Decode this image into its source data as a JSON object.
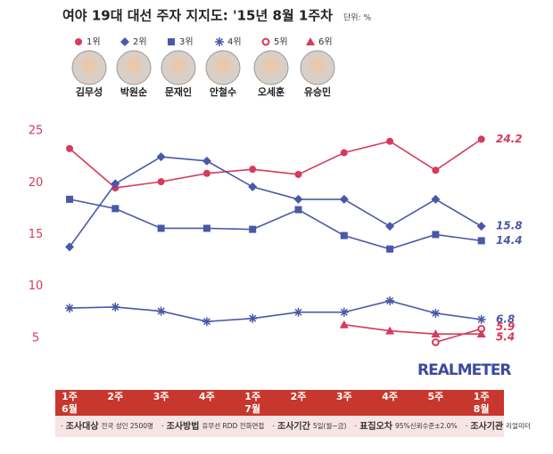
{
  "chart_data": {
    "type": "line",
    "title": "여야 19대 대선 주자 지지도: '15년 8월 1주차",
    "unit": "단위: %",
    "people": [
      "김무성",
      "박원순",
      "문재인",
      "안철수",
      "오세훈",
      "유승민"
    ],
    "categories": [
      [
        "1주",
        "6월"
      ],
      "2주",
      "3주",
      "4주",
      [
        "1주",
        "7월"
      ],
      "2주",
      "3주",
      "4주",
      "5주",
      [
        "1주",
        "8월"
      ]
    ],
    "ylim": [
      0,
      27.5
    ],
    "yticks": [
      5,
      10,
      15,
      20,
      25
    ],
    "series": [
      {
        "name": "1위",
        "color": "#d63a5c",
        "marker": "circle",
        "values": [
          23.3,
          19.5,
          20.1,
          20.9,
          21.3,
          20.8,
          22.9,
          24.0,
          21.2,
          24.2
        ]
      },
      {
        "name": "2위",
        "color": "#4a58a8",
        "marker": "diamond",
        "values": [
          13.8,
          19.9,
          22.5,
          22.1,
          19.6,
          18.4,
          18.4,
          15.8,
          18.4,
          15.8
        ]
      },
      {
        "name": "3위",
        "color": "#4a58a8",
        "marker": "square",
        "values": [
          18.4,
          17.5,
          15.6,
          15.6,
          15.5,
          17.4,
          14.9,
          13.6,
          15.0,
          14.4
        ]
      },
      {
        "name": "4위",
        "color": "#4a58a8",
        "marker": "asterisk",
        "values": [
          7.9,
          8.0,
          7.6,
          6.6,
          6.9,
          7.5,
          7.5,
          8.6,
          7.4,
          6.8
        ]
      },
      {
        "name": "5위",
        "color": "#d63a5c",
        "marker": "circle-open",
        "values": [
          null,
          null,
          null,
          null,
          null,
          null,
          null,
          null,
          4.6,
          5.9
        ]
      },
      {
        "name": "6위",
        "color": "#d63a5c",
        "marker": "triangle",
        "values": [
          null,
          null,
          null,
          null,
          null,
          null,
          6.3,
          5.7,
          5.4,
          5.4
        ]
      }
    ],
    "logo": "REALMETER",
    "footer": [
      {
        "label": "조사대상",
        "text": "전국 성인 2500명"
      },
      {
        "label": "조사방법",
        "text": "유무선 RDD 전화면접"
      },
      {
        "label": "조사기간",
        "text": "5일(월~금)"
      },
      {
        "label": "표집오차",
        "text": "95%신뢰수준±2.0%"
      },
      {
        "label": "조사기관",
        "text": "리얼미터"
      }
    ]
  }
}
